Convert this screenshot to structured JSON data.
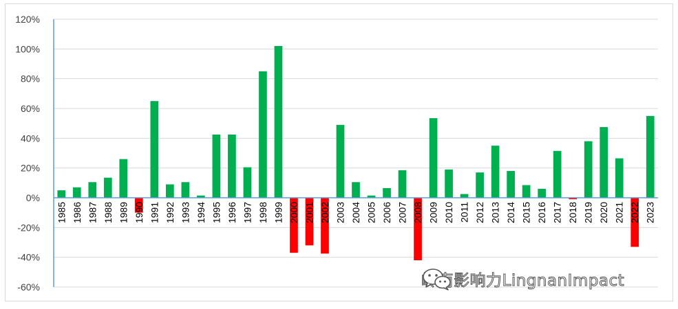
{
  "watermark": {
    "text": "岭南影响力LingnanImpact",
    "icon": "wechat-icon"
  },
  "colors": {
    "positive": "#00b050",
    "negative": "#ff0000",
    "axis": "#5b9bd5",
    "grid": "#d9d9d9"
  },
  "chart_data": {
    "type": "bar",
    "title": "",
    "xlabel": "",
    "ylabel": "",
    "ylim": [
      -60,
      120
    ],
    "yticks": [
      120,
      100,
      80,
      60,
      40,
      20,
      0,
      -20,
      -40,
      -60
    ],
    "ytick_labels": [
      "120%",
      "100%",
      "80%",
      "60%",
      "40%",
      "20%",
      "0%",
      "-20%",
      "-40%",
      "-60%"
    ],
    "grid": true,
    "legend": "none",
    "categories": [
      "1985",
      "1986",
      "1987",
      "1988",
      "1989",
      "1990",
      "1991",
      "1992",
      "1993",
      "1994",
      "1995",
      "1996",
      "1997",
      "1998",
      "1999",
      "2000",
      "2001",
      "2002",
      "2003",
      "2004",
      "2005",
      "2006",
      "2007",
      "2008",
      "2009",
      "2010",
      "2011",
      "2012",
      "2013",
      "2014",
      "2015",
      "2016",
      "2017",
      "2018",
      "2019",
      "2020",
      "2021",
      "2022",
      "2023"
    ],
    "values": [
      5,
      7,
      10.5,
      13.5,
      26,
      -10,
      65,
      9,
      10.5,
      1.5,
      42.5,
      42.5,
      20.5,
      85,
      102,
      -37,
      -32,
      -37.5,
      49,
      10.5,
      1.5,
      6.5,
      18.5,
      -42,
      53.5,
      19,
      2.5,
      17,
      35,
      18,
      8.5,
      6,
      31.5,
      -1,
      38,
      47.5,
      26.5,
      -33,
      55
    ]
  }
}
